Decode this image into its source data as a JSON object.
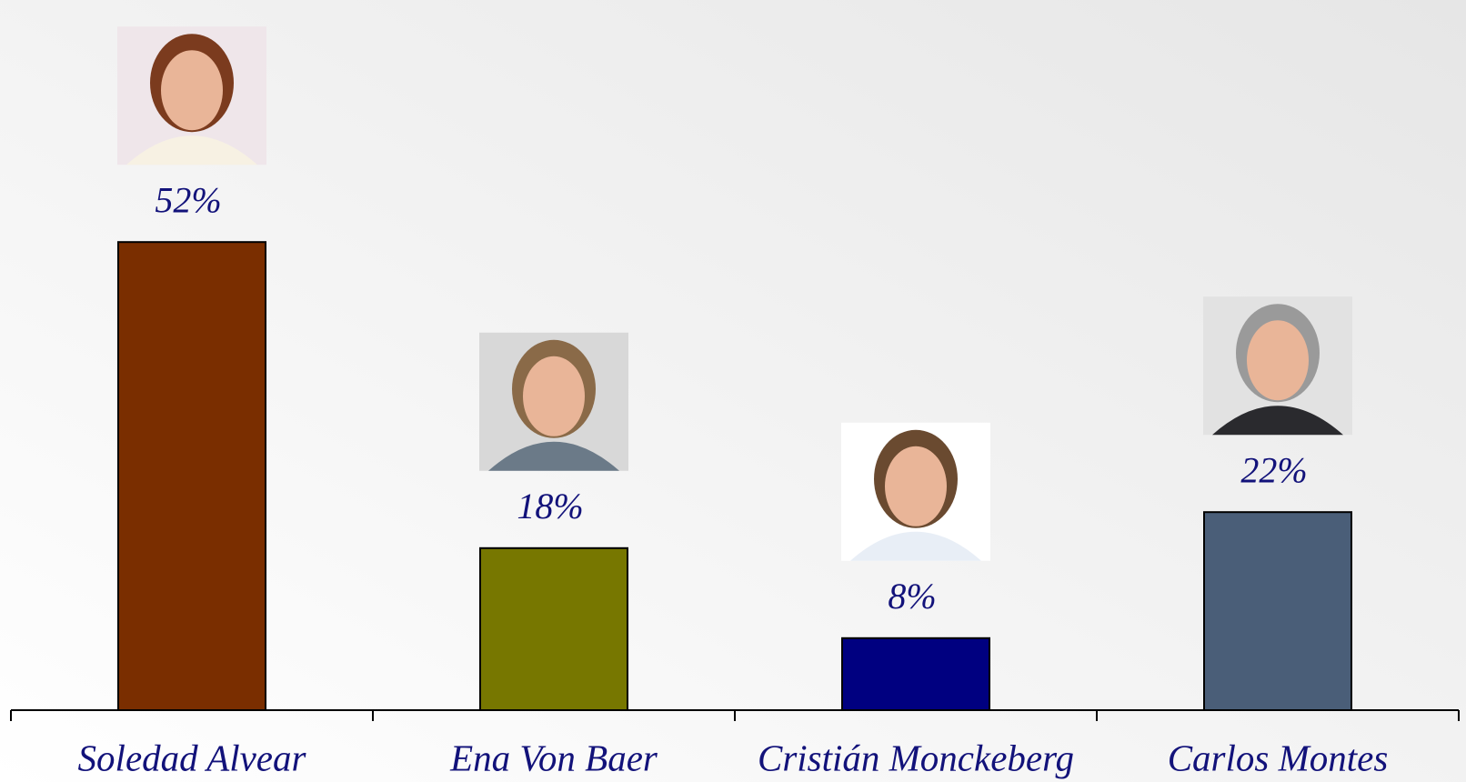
{
  "chart_data": {
    "type": "bar",
    "categories": [
      "Soledad Alvear",
      "Ena Von Baer",
      "Cristián Monckeberg",
      "Carlos Montes"
    ],
    "values": [
      52,
      18,
      8,
      22
    ],
    "value_labels": [
      "52%",
      "18%",
      "8%",
      "22%"
    ],
    "colors": [
      "#7a2e00",
      "#777700",
      "#000080",
      "#4a5e78"
    ]
  }
}
